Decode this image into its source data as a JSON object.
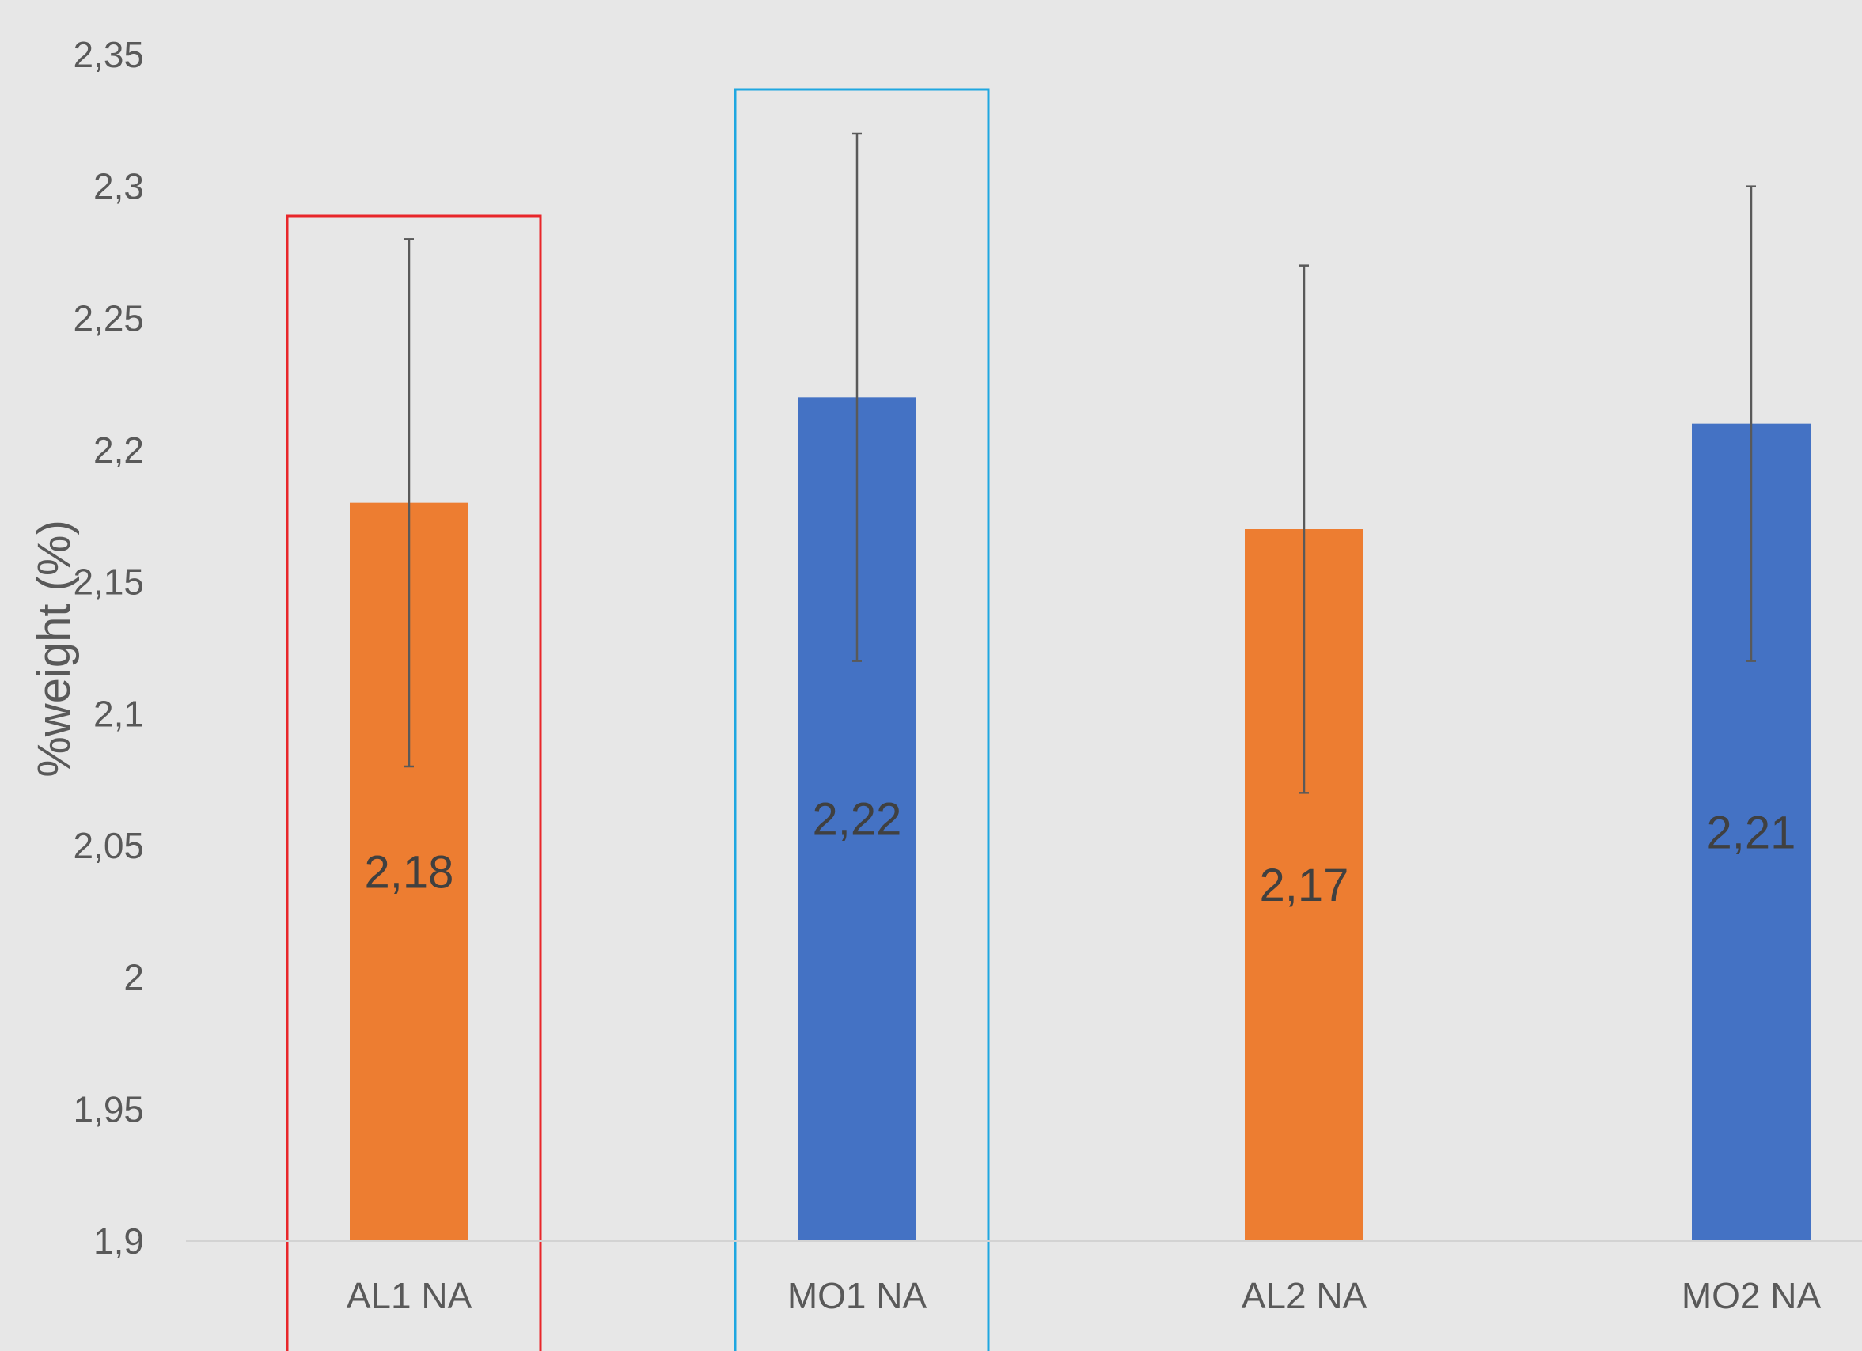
{
  "chart_data": {
    "type": "bar",
    "categories": [
      "AL1 NA",
      "MO1 NA",
      "AL2 NA",
      "MO2 NA"
    ],
    "values": [
      2.18,
      2.22,
      2.17,
      2.21
    ],
    "value_labels": [
      "2,18",
      "2,22",
      "2,17",
      "2,21"
    ],
    "error_bars": [
      {
        "low": 2.08,
        "high": 2.28
      },
      {
        "low": 2.12,
        "high": 2.32
      },
      {
        "low": 2.07,
        "high": 2.27
      },
      {
        "low": 2.12,
        "high": 2.3
      }
    ],
    "bar_colors": [
      "#ed7d31",
      "#4472c4",
      "#ed7d31",
      "#4472c4"
    ],
    "ylabel": "%weight (%)",
    "ylim": [
      1.9,
      2.35
    ],
    "yticks": [
      1.9,
      1.95,
      2.0,
      2.05,
      2.1,
      2.15,
      2.2,
      2.25,
      2.3,
      2.35
    ],
    "ytick_labels": [
      "1,9",
      "1,95",
      "2",
      "2,05",
      "2,1",
      "2,15",
      "2,2",
      "2,25",
      "2,3",
      "2,35"
    ],
    "grid": false,
    "legend": "none",
    "highlight_boxes": [
      {
        "category": "AL1 NA",
        "color": "#e8262a"
      },
      {
        "category": "MO1 NA",
        "color": "#1fa7e0"
      }
    ],
    "colors": {
      "background": "#e7e7e7",
      "text": "#595959",
      "data_label": "#404040",
      "baseline": "#d3d3d3",
      "error_bar": "#595959"
    }
  }
}
